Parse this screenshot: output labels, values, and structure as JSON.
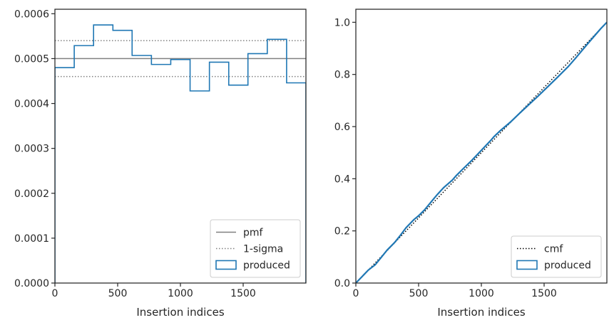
{
  "chart_data": [
    {
      "type": "step",
      "xlabel": "Insertion indices",
      "ylabel": "",
      "xlim": [
        0,
        2000
      ],
      "ylim": [
        0,
        0.00061
      ],
      "xticks": [
        0,
        500,
        1000,
        1500
      ],
      "xtick_labels": [
        "0",
        "500",
        "1000",
        "1500"
      ],
      "yticks": [
        0,
        0.0001,
        0.0002,
        0.0003,
        0.0004,
        0.0005,
        0.0006
      ],
      "ytick_labels": [
        "0.0000",
        "0.0001",
        "0.0002",
        "0.0003",
        "0.0004",
        "0.0005",
        "0.0006"
      ],
      "grid": false,
      "legend_position": "bottom-right",
      "legend": [
        "pmf",
        "1-sigma",
        "produced"
      ],
      "reference_lines": [
        {
          "name": "pmf",
          "y": 0.0005,
          "color": "#808080",
          "style": "solid"
        },
        {
          "name": "1-sigma",
          "y": 0.00054,
          "color": "#808080",
          "style": "dotted"
        },
        {
          "name": "1-sigma",
          "y": 0.00046,
          "color": "#808080",
          "style": "dotted"
        }
      ],
      "series": [
        {
          "name": "produced",
          "color": "#1f77b4",
          "bin_edges": [
            0,
            154,
            308,
            462,
            615,
            769,
            923,
            1077,
            1231,
            1385,
            1538,
            1692,
            1846,
            2000
          ],
          "values": [
            0.00048,
            0.000529,
            0.000575,
            0.000563,
            0.000507,
            0.000487,
            0.000498,
            0.000428,
            0.000492,
            0.000441,
            0.000511,
            0.000543,
            0.000446
          ]
        }
      ]
    },
    {
      "type": "line",
      "xlabel": "Insertion indices",
      "ylabel": "",
      "xlim": [
        0,
        2000
      ],
      "ylim": [
        0,
        1.05
      ],
      "xticks": [
        0,
        500,
        1000,
        1500
      ],
      "xtick_labels": [
        "0",
        "500",
        "1000",
        "1500"
      ],
      "yticks": [
        0,
        0.2,
        0.4,
        0.6,
        0.8,
        1.0
      ],
      "ytick_labels": [
        "0.0",
        "0.2",
        "0.4",
        "0.6",
        "0.8",
        "1.0"
      ],
      "grid": false,
      "legend_position": "bottom-right",
      "legend": [
        "cmf",
        "produced"
      ],
      "series": [
        {
          "name": "cmf",
          "color": "#000000",
          "style": "dotted",
          "x": [
            0,
            2000
          ],
          "y": [
            0,
            1.0
          ]
        },
        {
          "name": "produced",
          "color": "#1f77b4",
          "style": "solid",
          "x": [
            0,
            50,
            100,
            154,
            200,
            250,
            308,
            350,
            400,
            462,
            500,
            550,
            615,
            650,
            700,
            769,
            800,
            850,
            923,
            1000,
            1077,
            1100,
            1150,
            1231,
            1300,
            1385,
            1450,
            1538,
            1600,
            1692,
            1750,
            1846,
            1900,
            1950,
            2000
          ],
          "y": [
            0,
            0.025,
            0.05,
            0.07,
            0.097,
            0.127,
            0.155,
            0.18,
            0.212,
            0.243,
            0.258,
            0.282,
            0.32,
            0.34,
            0.366,
            0.395,
            0.412,
            0.436,
            0.47,
            0.509,
            0.548,
            0.561,
            0.584,
            0.617,
            0.649,
            0.687,
            0.716,
            0.757,
            0.786,
            0.83,
            0.862,
            0.917,
            0.947,
            0.975,
            1.0
          ]
        }
      ]
    }
  ]
}
